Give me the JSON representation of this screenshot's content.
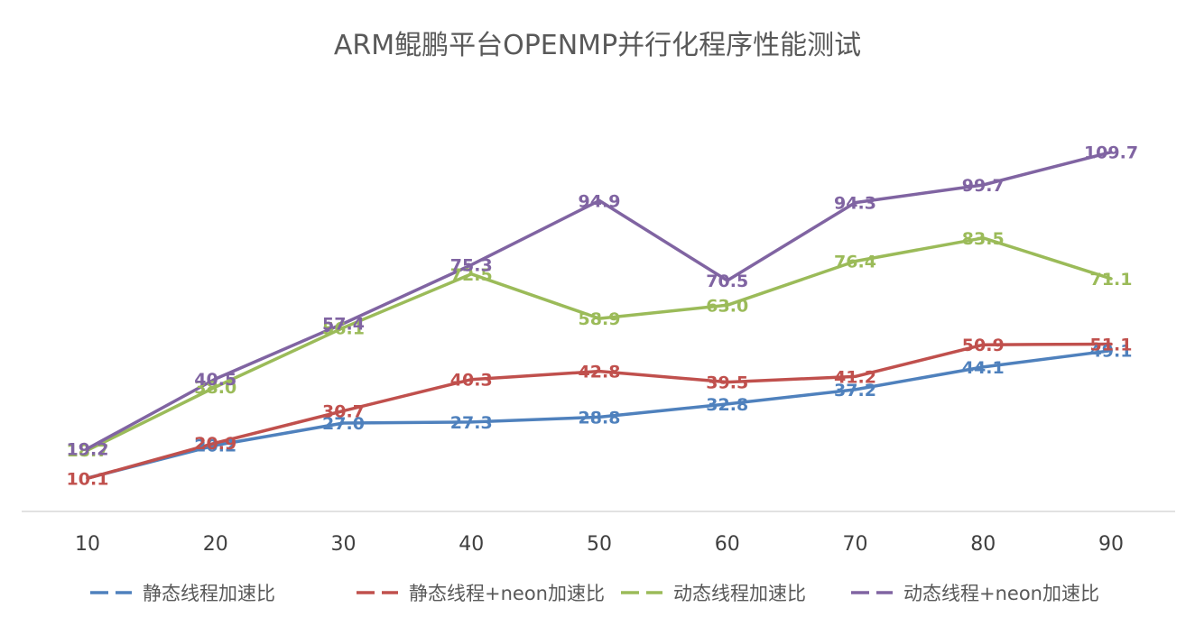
{
  "chart_data": {
    "type": "line",
    "title": "ARM鲲鹏平台OPENMP并行化程序性能测试",
    "xlabel": "",
    "ylabel": "",
    "categories": [
      "10",
      "20",
      "30",
      "40",
      "50",
      "60",
      "70",
      "80",
      "90"
    ],
    "ylim": [
      0,
      130
    ],
    "grid": false,
    "legend_position": "bottom",
    "series": [
      {
        "name": "静态线程加速比",
        "color": "#4f81bd",
        "values": [
          10.2,
          20.2,
          27.0,
          27.3,
          28.8,
          32.8,
          37.2,
          44.1,
          49.1
        ],
        "labels": [
          "",
          "20.2",
          "27.0",
          "27.3",
          "28.8",
          "32.8",
          "37.2",
          "44.1",
          "49.1"
        ]
      },
      {
        "name": "静态线程+neon加速比",
        "color": "#c0504d",
        "values": [
          10.1,
          20.9,
          30.7,
          40.3,
          42.8,
          39.5,
          41.2,
          50.9,
          51.1
        ],
        "labels": [
          "10.1",
          "20.9",
          "30.7",
          "40.3",
          "42.8",
          "39.5",
          "41.2",
          "50.9",
          "51.1"
        ]
      },
      {
        "name": "动态线程加速比",
        "color": "#9bbb59",
        "values": [
          18.7,
          38.0,
          56.1,
          72.5,
          58.9,
          63.0,
          76.4,
          83.5,
          71.1
        ],
        "labels": [
          "18.7",
          "38.0",
          "56.1",
          "72.5",
          "58.9",
          "63.0",
          "76.4",
          "83.5",
          "71.1"
        ]
      },
      {
        "name": "动态线程+neon加速比",
        "color": "#8064a2",
        "values": [
          19.2,
          40.5,
          57.4,
          75.3,
          94.9,
          70.5,
          94.3,
          99.7,
          109.7
        ],
        "labels": [
          "19.2",
          "40.5",
          "57.4",
          "75.3",
          "94.9",
          "70.5",
          "94.3",
          "99.7",
          "109.7"
        ]
      }
    ]
  }
}
